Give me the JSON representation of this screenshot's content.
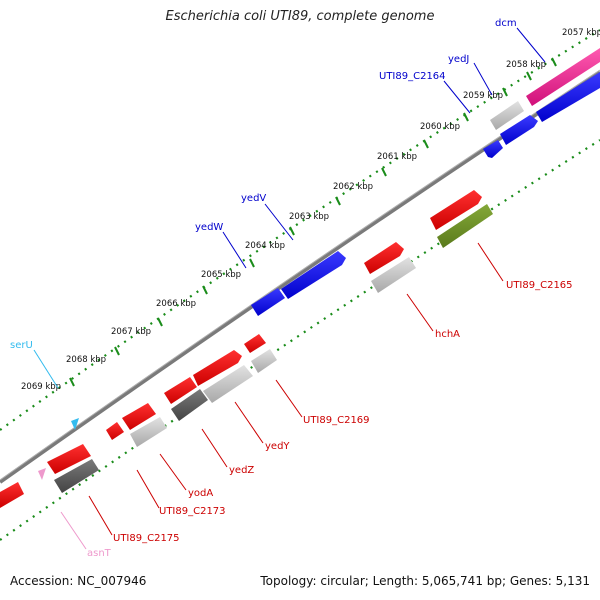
{
  "title": "Escherichia coli UTI89, complete genome",
  "footer": {
    "accession": "Accession: NC_007946",
    "topology": "Topology: circular; Length: 5,065,741 bp; Genes: 5,131"
  },
  "ticks": [
    "2057 kbp",
    "2058 kbp",
    "2059 kbp",
    "2060 kbp",
    "2061 kbp",
    "2062 kbp",
    "2063 kbp",
    "2064 kbp",
    "2065 kbp",
    "2066 kbp",
    "2067 kbp",
    "2068 kbp",
    "2069 kbp"
  ],
  "gene_labels": {
    "dcm": "dcm",
    "yedJ": "yedJ",
    "c2164": "UTI89_C2164",
    "yedV": "yedV",
    "yedW": "yedW",
    "serU": "serU",
    "c2165": "UTI89_C2165",
    "hchA": "hchA",
    "c2169": "UTI89_C2169",
    "yedY": "yedY",
    "yedZ": "yedZ",
    "yodA": "yodA",
    "c2173": "UTI89_C2173",
    "c2175": "UTI89_C2175",
    "asnT": "asnT"
  },
  "colors": {
    "forward_cds": "#0000ee",
    "reverse_cds": "#ee0000",
    "pink": "#e8188c",
    "olive": "#6b8e23",
    "gray_light": "#c0c0c0",
    "gray_dark": "#5a5a5a",
    "trna": "#33bbee",
    "asn_trna": "#ee99cc",
    "dots": "#1a8c1a",
    "backbone": "#777777"
  }
}
